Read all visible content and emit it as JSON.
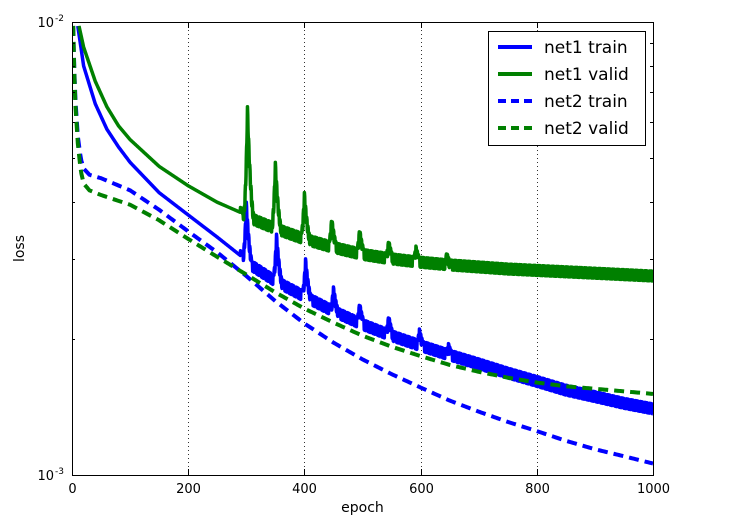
{
  "chart_data": {
    "type": "line",
    "xlabel": "epoch",
    "ylabel": "loss",
    "xlim": [
      0,
      1000
    ],
    "ylim": [
      0.001,
      0.01
    ],
    "yscale": "log",
    "grid": "vertical dotted at major x ticks",
    "legend_position": "top-right",
    "x_ticks": [
      0,
      200,
      400,
      600,
      800,
      1000
    ],
    "x_tick_labels": [
      "0",
      "200",
      "400",
      "600",
      "800",
      "1000"
    ],
    "y_major_ticks": [
      {
        "value": 0.001,
        "base": "10",
        "exp": "-3"
      },
      {
        "value": 0.01,
        "base": "10",
        "exp": "-2"
      }
    ],
    "series": [
      {
        "name": "net1 train",
        "color": "#0000ff",
        "style": "solid",
        "points": [
          [
            10,
            0.0098
          ],
          [
            20,
            0.008
          ],
          [
            40,
            0.0066
          ],
          [
            60,
            0.0058
          ],
          [
            80,
            0.0053
          ],
          [
            100,
            0.0049
          ],
          [
            150,
            0.0042
          ],
          [
            200,
            0.00375
          ],
          [
            250,
            0.00335
          ],
          [
            290,
            0.00305
          ],
          [
            300,
            0.00295
          ],
          [
            350,
            0.00268
          ],
          [
            400,
            0.00248
          ],
          [
            450,
            0.0023
          ],
          [
            500,
            0.00215
          ],
          [
            550,
            0.00203
          ],
          [
            600,
            0.00193
          ],
          [
            650,
            0.00184
          ],
          [
            700,
            0.00176
          ],
          [
            750,
            0.00168
          ],
          [
            800,
            0.00161
          ],
          [
            850,
            0.00154
          ],
          [
            900,
            0.00149
          ],
          [
            950,
            0.00144
          ],
          [
            1000,
            0.0014
          ]
        ],
        "spikes": [
          [
            300,
            0.004
          ],
          [
            352,
            0.0034
          ],
          [
            402,
            0.003
          ],
          [
            450,
            0.0026
          ],
          [
            495,
            0.0024
          ],
          [
            545,
            0.00225
          ],
          [
            598,
            0.0021
          ],
          [
            648,
            0.00195
          ]
        ],
        "oscillation_range": [
          290,
          1000
        ]
      },
      {
        "name": "net1 valid",
        "color": "#008000",
        "style": "solid",
        "points": [
          [
            12,
            0.0098
          ],
          [
            20,
            0.0088
          ],
          [
            40,
            0.0074
          ],
          [
            60,
            0.0065
          ],
          [
            80,
            0.0059
          ],
          [
            100,
            0.0055
          ],
          [
            150,
            0.0048
          ],
          [
            200,
            0.00435
          ],
          [
            250,
            0.004
          ],
          [
            290,
            0.0038
          ],
          [
            300,
            0.00372
          ],
          [
            350,
            0.0035
          ],
          [
            400,
            0.00332
          ],
          [
            450,
            0.00318
          ],
          [
            500,
            0.00307
          ],
          [
            550,
            0.003
          ],
          [
            600,
            0.00295
          ],
          [
            650,
            0.00291
          ],
          [
            700,
            0.00288
          ],
          [
            750,
            0.00285
          ],
          [
            800,
            0.00283
          ],
          [
            850,
            0.00281
          ],
          [
            900,
            0.00279
          ],
          [
            950,
            0.00277
          ],
          [
            1000,
            0.00275
          ]
        ],
        "spikes": [
          [
            302,
            0.0065
          ],
          [
            350,
            0.0049
          ],
          [
            400,
            0.0042
          ],
          [
            447,
            0.0037
          ],
          [
            495,
            0.0035
          ],
          [
            545,
            0.0033
          ],
          [
            592,
            0.0032
          ],
          [
            645,
            0.0031
          ]
        ],
        "oscillation_range": [
          290,
          1000
        ]
      },
      {
        "name": "net2 train",
        "color": "#0000ff",
        "style": "dashed",
        "points": [
          [
            2,
            0.0098
          ],
          [
            5,
            0.007
          ],
          [
            10,
            0.0056
          ],
          [
            15,
            0.005
          ],
          [
            20,
            0.00475
          ],
          [
            30,
            0.0046
          ],
          [
            50,
            0.00452
          ],
          [
            100,
            0.00425
          ],
          [
            150,
            0.00385
          ],
          [
            200,
            0.00345
          ],
          [
            250,
            0.0031
          ],
          [
            300,
            0.00275
          ],
          [
            350,
            0.00242
          ],
          [
            400,
            0.00216
          ],
          [
            450,
            0.00196
          ],
          [
            500,
            0.0018
          ],
          [
            550,
            0.00167
          ],
          [
            600,
            0.00156
          ],
          [
            650,
            0.00146
          ],
          [
            700,
            0.00138
          ],
          [
            750,
            0.00131
          ],
          [
            800,
            0.00125
          ],
          [
            850,
            0.00119
          ],
          [
            900,
            0.00114
          ],
          [
            950,
            0.0011
          ],
          [
            1000,
            0.00106
          ]
        ]
      },
      {
        "name": "net2 valid",
        "color": "#008000",
        "style": "dashed",
        "points": [
          [
            2,
            0.0098
          ],
          [
            5,
            0.0068
          ],
          [
            10,
            0.0054
          ],
          [
            15,
            0.0047
          ],
          [
            20,
            0.0044
          ],
          [
            30,
            0.00425
          ],
          [
            50,
            0.00415
          ],
          [
            100,
            0.00395
          ],
          [
            150,
            0.00365
          ],
          [
            200,
            0.00332
          ],
          [
            250,
            0.00303
          ],
          [
            300,
            0.00277
          ],
          [
            350,
            0.00253
          ],
          [
            400,
            0.00233
          ],
          [
            450,
            0.00217
          ],
          [
            500,
            0.00203
          ],
          [
            550,
            0.00192
          ],
          [
            600,
            0.00183
          ],
          [
            650,
            0.00175
          ],
          [
            700,
            0.00169
          ],
          [
            750,
            0.00164
          ],
          [
            800,
            0.0016
          ],
          [
            850,
            0.00157
          ],
          [
            900,
            0.00155
          ],
          [
            950,
            0.00153
          ],
          [
            1000,
            0.00151
          ]
        ]
      }
    ]
  }
}
